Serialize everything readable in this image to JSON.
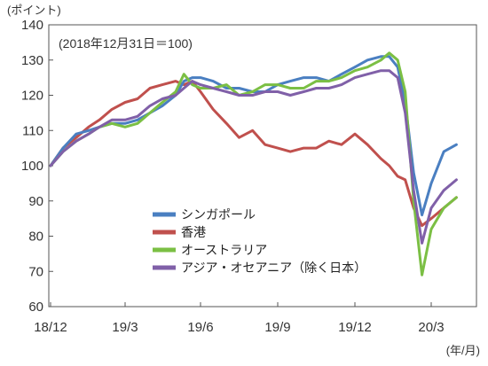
{
  "chart_data": {
    "type": "line",
    "ylabel": "(ポイント)",
    "xlabel": "(年/月)",
    "note": "(2018年12月31日＝100)",
    "ylim": [
      60,
      140
    ],
    "yticks": [
      60,
      70,
      80,
      90,
      100,
      110,
      120,
      130,
      140
    ],
    "x_categories": [
      "18/12",
      "19/3",
      "19/6",
      "19/9",
      "19/12",
      "20/3"
    ],
    "grid": false,
    "legend_position": "bottom-center",
    "series": [
      {
        "name": "シンガポール",
        "color": "#4a7fc1",
        "x": [
          "2018-12-31",
          "2019-01-15",
          "2019-01-31",
          "2019-02-15",
          "2019-02-28",
          "2019-03-15",
          "2019-03-31",
          "2019-04-15",
          "2019-04-30",
          "2019-05-15",
          "2019-05-31",
          "2019-06-10",
          "2019-06-20",
          "2019-06-30",
          "2019-07-15",
          "2019-07-31",
          "2019-08-15",
          "2019-08-31",
          "2019-09-15",
          "2019-09-30",
          "2019-10-15",
          "2019-10-31",
          "2019-11-15",
          "2019-11-30",
          "2019-12-15",
          "2019-12-31",
          "2020-01-15",
          "2020-01-31",
          "2020-02-10",
          "2020-02-20",
          "2020-02-29",
          "2020-03-10",
          "2020-03-20",
          "2020-03-31",
          "2020-04-15",
          "2020-04-30"
        ],
        "values": [
          100,
          105,
          109,
          110,
          111,
          112,
          112,
          113,
          115,
          117,
          120,
          124,
          125,
          125,
          124,
          122,
          122,
          121,
          121,
          123,
          124,
          125,
          125,
          124,
          126,
          128,
          130,
          131,
          131,
          128,
          118,
          98,
          86,
          95,
          104,
          106
        ]
      },
      {
        "name": "香港",
        "color": "#c0504d",
        "x": [
          "2018-12-31",
          "2019-01-15",
          "2019-01-31",
          "2019-02-15",
          "2019-02-28",
          "2019-03-15",
          "2019-03-31",
          "2019-04-15",
          "2019-04-30",
          "2019-05-15",
          "2019-05-31",
          "2019-06-10",
          "2019-06-20",
          "2019-06-30",
          "2019-07-15",
          "2019-07-31",
          "2019-08-15",
          "2019-08-31",
          "2019-09-15",
          "2019-09-30",
          "2019-10-15",
          "2019-10-31",
          "2019-11-15",
          "2019-11-30",
          "2019-12-15",
          "2019-12-31",
          "2020-01-15",
          "2020-01-31",
          "2020-02-10",
          "2020-02-20",
          "2020-02-29",
          "2020-03-10",
          "2020-03-20",
          "2020-03-31",
          "2020-04-15",
          "2020-04-30"
        ],
        "values": [
          100,
          105,
          108,
          111,
          113,
          116,
          118,
          119,
          122,
          123,
          124,
          123,
          124,
          121,
          116,
          112,
          108,
          110,
          106,
          105,
          104,
          105,
          105,
          107,
          106,
          109,
          106,
          102,
          100,
          97,
          96,
          88,
          83,
          85,
          88,
          91
        ]
      },
      {
        "name": "オーストラリア",
        "color": "#7bbf44",
        "x": [
          "2018-12-31",
          "2019-01-15",
          "2019-01-31",
          "2019-02-15",
          "2019-02-28",
          "2019-03-15",
          "2019-03-31",
          "2019-04-15",
          "2019-04-30",
          "2019-05-15",
          "2019-05-31",
          "2019-06-10",
          "2019-06-20",
          "2019-06-30",
          "2019-07-15",
          "2019-07-31",
          "2019-08-15",
          "2019-08-31",
          "2019-09-15",
          "2019-09-30",
          "2019-10-15",
          "2019-10-31",
          "2019-11-15",
          "2019-11-30",
          "2019-12-15",
          "2019-12-31",
          "2020-01-15",
          "2020-01-31",
          "2020-02-10",
          "2020-02-20",
          "2020-02-29",
          "2020-03-10",
          "2020-03-20",
          "2020-03-31",
          "2020-04-15",
          "2020-04-30"
        ],
        "values": [
          100,
          104,
          107,
          109,
          111,
          112,
          111,
          112,
          115,
          118,
          121,
          126,
          123,
          122,
          122,
          123,
          120,
          121,
          123,
          123,
          122,
          122,
          124,
          124,
          125,
          127,
          128,
          130,
          132,
          130,
          121,
          90,
          69,
          82,
          88,
          91
        ]
      },
      {
        "name": "アジア・オセアニア（除く日本）",
        "color": "#8060a8",
        "x": [
          "2018-12-31",
          "2019-01-15",
          "2019-01-31",
          "2019-02-15",
          "2019-02-28",
          "2019-03-15",
          "2019-03-31",
          "2019-04-15",
          "2019-04-30",
          "2019-05-15",
          "2019-05-31",
          "2019-06-10",
          "2019-06-20",
          "2019-06-30",
          "2019-07-15",
          "2019-07-31",
          "2019-08-15",
          "2019-08-31",
          "2019-09-15",
          "2019-09-30",
          "2019-10-15",
          "2019-10-31",
          "2019-11-15",
          "2019-11-30",
          "2019-12-15",
          "2019-12-31",
          "2020-01-15",
          "2020-01-31",
          "2020-02-10",
          "2020-02-20",
          "2020-02-29",
          "2020-03-10",
          "2020-03-20",
          "2020-03-31",
          "2020-04-15",
          "2020-04-30"
        ],
        "values": [
          100,
          104,
          107,
          109,
          111,
          113,
          113,
          114,
          117,
          119,
          120,
          122,
          124,
          123,
          122,
          121,
          120,
          120,
          121,
          121,
          120,
          121,
          122,
          122,
          123,
          125,
          126,
          127,
          127,
          125,
          115,
          93,
          78,
          88,
          93,
          96
        ]
      }
    ]
  }
}
